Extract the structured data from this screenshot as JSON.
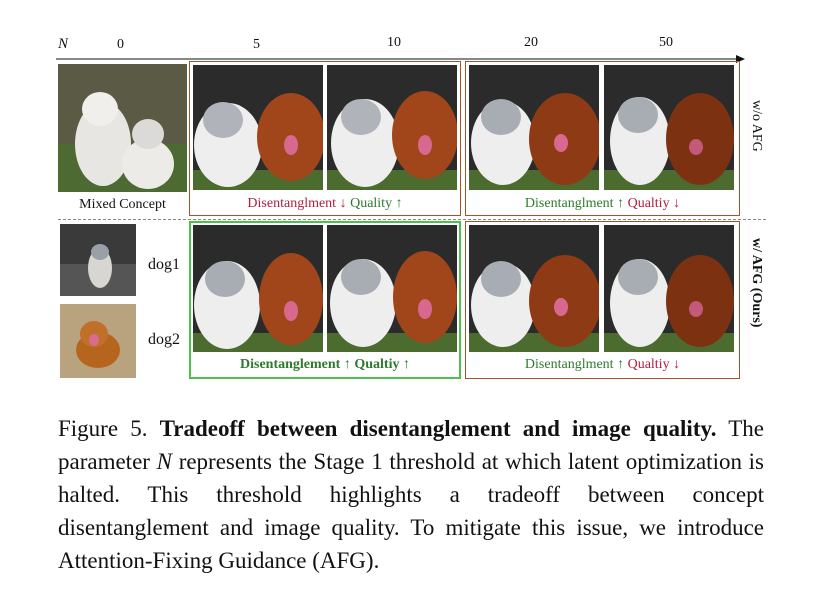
{
  "axis": {
    "n_label": "N",
    "ticks": [
      "0",
      "5",
      "10",
      "20",
      "50"
    ]
  },
  "labels": {
    "mixed_concept": "Mixed Concept",
    "dog1": "dog1",
    "dog2": "dog2",
    "wo_afg": "w/o AFG",
    "w_afg": "w/ AFG (Ours)"
  },
  "row_captions": {
    "top_left": {
      "a": "Disentanglment",
      "a_arrow": "↓",
      "b": "Quality",
      "b_arrow": "↑"
    },
    "top_right": {
      "a": "Disentanglment",
      "a_arrow": "↑",
      "b": "Qualtiy",
      "b_arrow": "↓"
    },
    "bottom_left": {
      "a": "Disentanglement",
      "a_arrow": "↑",
      "b": "Qualtiy",
      "b_arrow": "↑"
    },
    "bottom_right": {
      "a": "Disentanglment",
      "a_arrow": "↑",
      "b": "Qualtiy",
      "b_arrow": "↓"
    }
  },
  "colors": {
    "box_brown": "#a8522a",
    "box_green": "#4cc24c",
    "text_red": "#b0213f",
    "text_green": "#2e7a2e"
  },
  "figure_caption": {
    "label": "Figure 5.",
    "bold": "Tradeoff between disentanglement and image quality.",
    "rest_1": "The parameter",
    "var": "N",
    "rest_2": "represents the Stage 1 threshold at which latent optimization is halted. This threshold highlights a tradeoff between concept disentanglement and image quality. To mitigate this issue, we introduce Attention-Fixing Guidance (AFG)."
  }
}
